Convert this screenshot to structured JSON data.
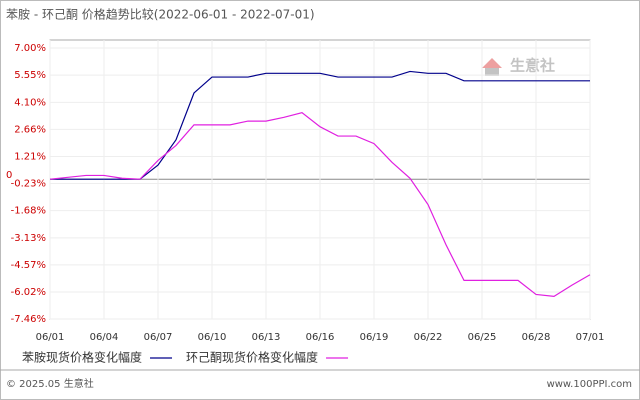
{
  "chart_data": {
    "type": "line",
    "title": "苯胺 - 环己酮 价格趋势比较(2022-06-01 - 2022-07-01)",
    "categories": [
      "06/01",
      null,
      null,
      "06/04",
      null,
      null,
      "06/07",
      null,
      null,
      "06/10",
      null,
      null,
      "06/13",
      null,
      null,
      "06/16",
      null,
      null,
      "06/19",
      null,
      null,
      "06/22",
      null,
      null,
      "06/25",
      null,
      null,
      "06/28",
      null,
      null,
      "07/01"
    ],
    "series": [
      {
        "name": "苯胺现货价格变化幅度",
        "color": "#00008b",
        "values": [
          0,
          0,
          0,
          0,
          0,
          0,
          0.75,
          2.1,
          4.6,
          5.45,
          5.45,
          5.45,
          5.65,
          5.65,
          5.65,
          5.65,
          5.45,
          5.45,
          5.45,
          5.45,
          5.75,
          5.65,
          5.65,
          5.25,
          5.25,
          5.25,
          5.25,
          5.25,
          5.25,
          5.25,
          5.25
        ]
      },
      {
        "name": "环己酮现货价格变化幅度",
        "color": "#e020e0",
        "values": [
          0,
          0.1,
          0.2,
          0.2,
          0.05,
          0,
          1.0,
          1.8,
          2.9,
          2.9,
          2.9,
          3.1,
          3.1,
          3.3,
          3.55,
          2.8,
          2.3,
          2.3,
          1.9,
          0.9,
          0.05,
          -1.35,
          -3.5,
          -5.4,
          -5.4,
          -5.4,
          -5.4,
          -6.15,
          -6.25,
          -5.65,
          -5.1
        ]
      }
    ],
    "ylim": [
      -7.46,
      7.0
    ],
    "yticks": [
      {
        "value": 7.0,
        "label": "7.00%"
      },
      {
        "value": 5.55,
        "label": "5.55%"
      },
      {
        "value": 4.1,
        "label": "4.10%"
      },
      {
        "value": 2.66,
        "label": "2.66%"
      },
      {
        "value": 1.21,
        "label": "1.21%"
      },
      0,
      {
        "value": -0.23,
        "label": "-0.23%"
      },
      {
        "value": -1.68,
        "label": "-1.68%"
      },
      {
        "value": -3.13,
        "label": "-3.13%"
      },
      {
        "value": -4.57,
        "label": "-4.57%"
      },
      {
        "value": -6.02,
        "label": "-6.02%"
      },
      {
        "value": -7.46,
        "label": "-7.46%"
      }
    ],
    "grid": true,
    "legend": "bottom",
    "watermark": "生意社",
    "footer_left": "© 2025.05 生意社",
    "footer_right": "www.100PPI.com"
  }
}
